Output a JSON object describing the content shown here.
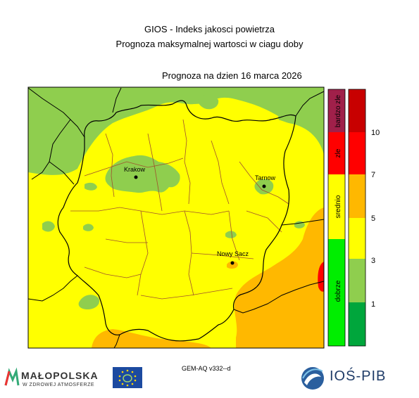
{
  "title_line1": "GIOS - Indeks jakosci powietrza",
  "title_line2": "Prognoza maksymalnej wartosci w ciagu doby",
  "forecast_date": "Prognoza na dzien  16 marca 2026",
  "cities": [
    {
      "name": "Krakow"
    },
    {
      "name": "Tarnow"
    },
    {
      "name": "Nowy Sacz"
    }
  ],
  "category_legend": [
    {
      "label": "dobrze",
      "color": "#00ee00"
    },
    {
      "label": "srednio",
      "color": "#ffff00"
    },
    {
      "label": "zle",
      "color": "#ff0000"
    },
    {
      "label": "bardzo zle",
      "color": "#a0204a"
    }
  ],
  "value_legend": {
    "bands": [
      {
        "color": "#00a63c"
      },
      {
        "color": "#8fce4e"
      },
      {
        "color": "#ffff00"
      },
      {
        "color": "#ffb800"
      },
      {
        "color": "#ff0000"
      },
      {
        "color": "#c80000"
      }
    ],
    "ticks": [
      "1",
      "3",
      "5",
      "7",
      "10"
    ]
  },
  "colors": {
    "light_green": "#8fce4e",
    "yellow": "#ffff00",
    "orange": "#ffb800",
    "red": "#ff0000",
    "border_black": "#000000",
    "border_district": "#a0522d"
  },
  "model_label": "GEM-AQ v332--d",
  "footer": {
    "malopolska_name": "MAŁOPOLSKA",
    "malopolska_sub": "W ZDROWEJ ATMOSFERZE",
    "ios_name": "IOŚ-PIB"
  }
}
